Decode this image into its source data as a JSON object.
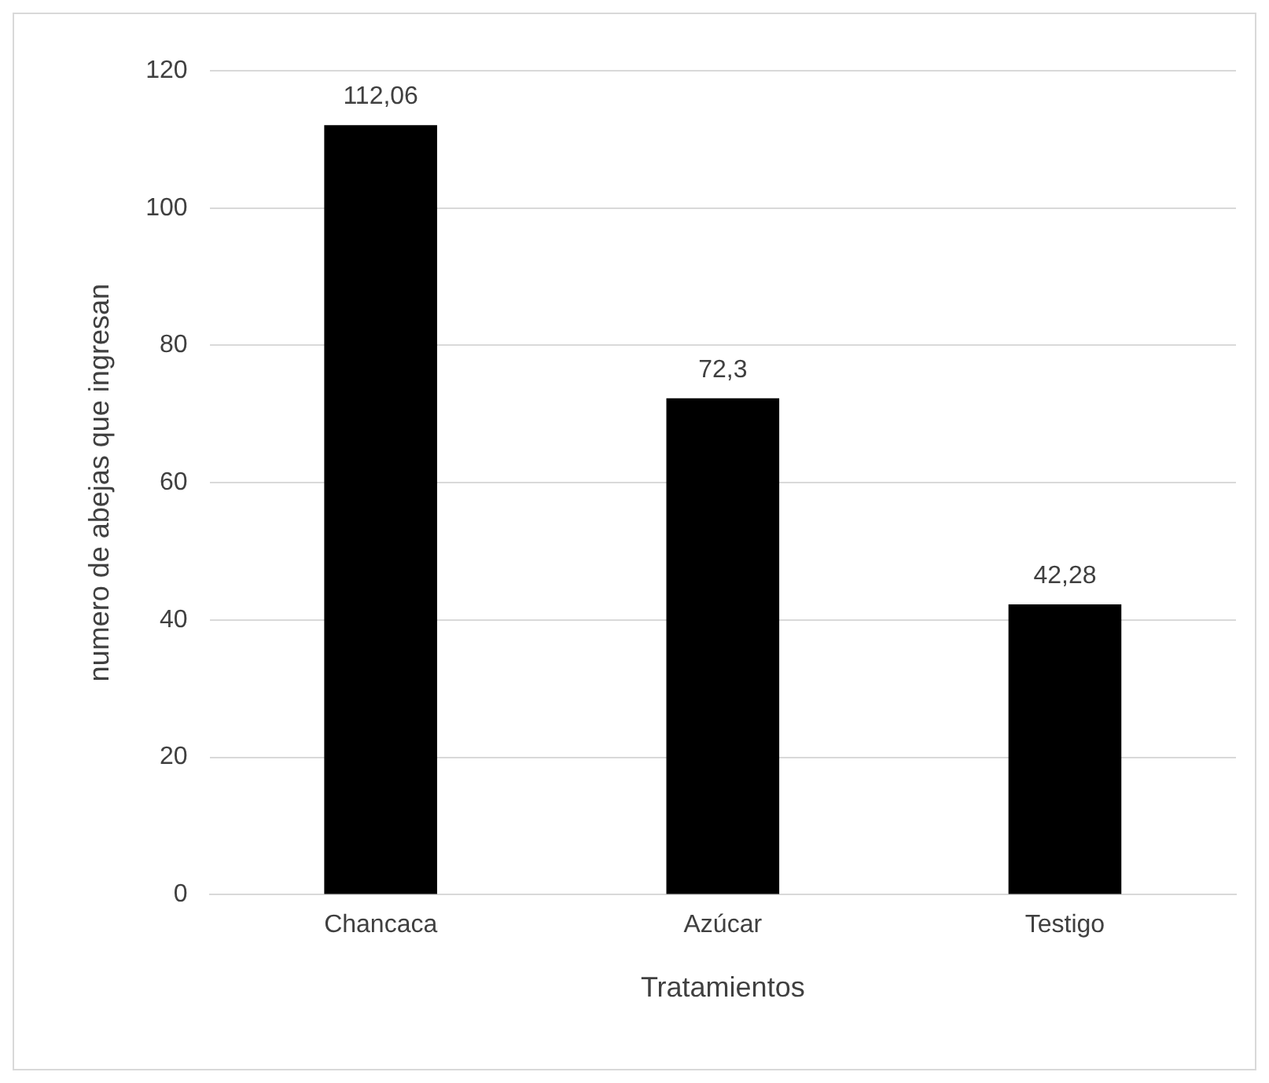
{
  "chart_data": {
    "type": "bar",
    "xlabel": "Tratamientos",
    "ylabel": "numero de abejas que ingresan",
    "categories": [
      "Chancaca",
      "Azúcar",
      "Testigo"
    ],
    "values": [
      112.06,
      72.3,
      42.28
    ],
    "value_labels": [
      "112,06",
      "72,3",
      "42,28"
    ],
    "color": "#000000",
    "ylim": [
      0,
      120
    ],
    "yticks": [
      0,
      20,
      40,
      60,
      80,
      100,
      120
    ],
    "grid": "y",
    "legend": false
  }
}
